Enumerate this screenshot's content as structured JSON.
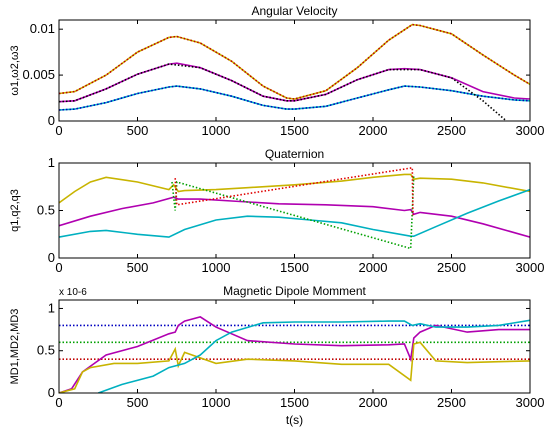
{
  "chart_data": [
    {
      "type": "line",
      "title": "Angular Velocity",
      "ylabel": "ω1,ω2,ω3",
      "xlim": [
        0,
        3000
      ],
      "ylim": [
        0,
        0.011
      ],
      "xticks": [
        0,
        500,
        1000,
        1500,
        2000,
        2500,
        3000
      ],
      "xtick_labels": [
        "0",
        "500",
        "1000",
        "1500",
        "2000",
        "2500",
        "3000"
      ],
      "yticks": [
        0,
        0.005,
        0.01
      ],
      "ytick_labels": [
        "0",
        "0.005",
        "0.01"
      ],
      "series": [
        {
          "color": "#c8b400",
          "style": "solid",
          "x": [
            0,
            100,
            300,
            500,
            700,
            750,
            900,
            1100,
            1300,
            1450,
            1500,
            1700,
            1900,
            2100,
            2250,
            2300,
            2500,
            2700,
            2900,
            3000
          ],
          "y": [
            0.003,
            0.0032,
            0.005,
            0.0075,
            0.0091,
            0.0092,
            0.0085,
            0.0065,
            0.0038,
            0.0025,
            0.0024,
            0.0033,
            0.0058,
            0.0088,
            0.0105,
            0.0104,
            0.0095,
            0.0072,
            0.005,
            0.004
          ]
        },
        {
          "color": "#b000b0",
          "style": "solid",
          "x": [
            0,
            100,
            300,
            500,
            700,
            750,
            900,
            1100,
            1300,
            1450,
            1500,
            1700,
            1900,
            2100,
            2200,
            2300,
            2500,
            2700,
            2900,
            3000
          ],
          "y": [
            0.0021,
            0.0022,
            0.0035,
            0.0051,
            0.0062,
            0.0063,
            0.0058,
            0.0044,
            0.0027,
            0.0022,
            0.0022,
            0.0029,
            0.0045,
            0.0056,
            0.0057,
            0.0056,
            0.0047,
            0.0032,
            0.0025,
            0.0024
          ]
        },
        {
          "color": "#00b0c0",
          "style": "solid",
          "x": [
            0,
            100,
            300,
            500,
            700,
            750,
            900,
            1100,
            1300,
            1450,
            1500,
            1700,
            1900,
            2100,
            2200,
            2300,
            2500,
            2700,
            2900,
            3000
          ],
          "y": [
            0.0012,
            0.0013,
            0.002,
            0.003,
            0.0037,
            0.0038,
            0.0035,
            0.0027,
            0.0017,
            0.0013,
            0.0013,
            0.0016,
            0.0025,
            0.0034,
            0.0038,
            0.0037,
            0.0033,
            0.0027,
            0.0023,
            0.0022
          ]
        },
        {
          "color": "#c00000",
          "style": "dotted",
          "x": [
            0,
            100,
            300,
            500,
            700,
            750,
            900,
            1100,
            1300,
            1450,
            1500,
            1700,
            1900,
            2100,
            2250,
            2300,
            2500,
            2700,
            2900,
            3000
          ],
          "y": [
            0.003,
            0.0032,
            0.005,
            0.0075,
            0.0091,
            0.0092,
            0.0085,
            0.0065,
            0.0038,
            0.0025,
            0.0024,
            0.0033,
            0.0058,
            0.0088,
            0.0105,
            0.0104,
            0.0095,
            0.0072,
            0.005,
            0.004
          ]
        },
        {
          "color": "#0000c0",
          "style": "dotted",
          "x": [
            0,
            100,
            300,
            500,
            700,
            750,
            900,
            1100,
            1300,
            1450,
            1500,
            1700,
            1900,
            2100,
            2200,
            2300,
            2500,
            2700,
            2900,
            3000
          ],
          "y": [
            0.0012,
            0.0013,
            0.002,
            0.003,
            0.0037,
            0.0038,
            0.0035,
            0.0027,
            0.0017,
            0.0013,
            0.0013,
            0.0016,
            0.0025,
            0.0034,
            0.0038,
            0.0037,
            0.0033,
            0.0027,
            0.0023,
            0.0022
          ]
        },
        {
          "color": "#000000",
          "style": "dotted",
          "x": [
            0,
            100,
            300,
            500,
            700,
            900,
            1100,
            1300,
            1450,
            1500,
            1700,
            1900,
            2100,
            2300,
            2500,
            2700,
            2850
          ],
          "y": [
            0.0021,
            0.0022,
            0.0035,
            0.0051,
            0.0062,
            0.0058,
            0.0044,
            0.0027,
            0.0022,
            0.0022,
            0.0029,
            0.0045,
            0.0056,
            0.0056,
            0.0047,
            0.0022,
            0.0
          ]
        }
      ]
    },
    {
      "type": "line",
      "title": "Quaternion",
      "ylabel": "q1,q2,q3",
      "xlim": [
        0,
        3000
      ],
      "ylim": [
        0,
        1
      ],
      "xticks": [
        0,
        500,
        1000,
        1500,
        2000,
        2500,
        3000
      ],
      "xtick_labels": [
        "0",
        "500",
        "1000",
        "1500",
        "2000",
        "2500",
        "3000"
      ],
      "yticks": [
        0,
        0.5,
        1
      ],
      "ytick_labels": [
        "0",
        "0.5",
        "1"
      ],
      "series": [
        {
          "color": "#c8b400",
          "style": "solid",
          "x": [
            0,
            100,
            200,
            300,
            500,
            700,
            730,
            760,
            800,
            1000,
            1200,
            1500,
            1800,
            2000,
            2200,
            2240,
            2260,
            2300,
            2500,
            2700,
            3000
          ],
          "y": [
            0.58,
            0.7,
            0.8,
            0.85,
            0.8,
            0.72,
            0.77,
            0.7,
            0.71,
            0.72,
            0.74,
            0.77,
            0.81,
            0.85,
            0.88,
            0.88,
            0.83,
            0.84,
            0.83,
            0.79,
            0.7
          ]
        },
        {
          "color": "#b000b0",
          "style": "solid",
          "x": [
            0,
            200,
            400,
            600,
            730,
            760,
            900,
            1100,
            1400,
            1700,
            2000,
            2200,
            2240,
            2260,
            2300,
            2500,
            2700,
            3000
          ],
          "y": [
            0.34,
            0.44,
            0.52,
            0.58,
            0.64,
            0.62,
            0.62,
            0.6,
            0.57,
            0.56,
            0.54,
            0.5,
            0.51,
            0.46,
            0.48,
            0.44,
            0.36,
            0.22
          ]
        },
        {
          "color": "#00b0c0",
          "style": "solid",
          "x": [
            0,
            200,
            300,
            500,
            700,
            800,
            1000,
            1200,
            1400,
            1600,
            1800,
            2000,
            2240,
            2260,
            2400,
            2600,
            2800,
            3000
          ],
          "y": [
            0.22,
            0.28,
            0.29,
            0.25,
            0.22,
            0.3,
            0.4,
            0.44,
            0.43,
            0.4,
            0.37,
            0.3,
            0.23,
            0.23,
            0.33,
            0.47,
            0.6,
            0.72
          ]
        },
        {
          "color": "#00a000",
          "style": "dotted",
          "x": [
            720,
            740,
            750,
            2240,
            2250,
            2260
          ],
          "y": [
            0.8,
            0.5,
            0.8,
            0.1,
            0.5,
            0.88
          ]
        },
        {
          "color": "#e00000",
          "style": "dotted",
          "x": [
            740,
            745,
            750,
            2250,
            2252,
            2255
          ],
          "y": [
            0.84,
            0.7,
            0.56,
            0.95,
            0.7,
            0.45
          ]
        }
      ]
    },
    {
      "type": "line",
      "title": "Magnetic Dipole Momment",
      "ylabel": "MD1,MD2,MD3",
      "xlabel": "t(s)",
      "exponent": "x 10-6",
      "xlim": [
        0,
        3000
      ],
      "ylim": [
        0,
        1.1
      ],
      "xticks": [
        0,
        500,
        1000,
        1500,
        2000,
        2500,
        3000
      ],
      "xtick_labels": [
        "0",
        "500",
        "1000",
        "1500",
        "2000",
        "2500",
        "3000"
      ],
      "yticks": [
        0,
        0.5,
        1
      ],
      "ytick_labels": [
        "0",
        "0.5",
        "1"
      ],
      "series": [
        {
          "color": "#0000c0",
          "style": "dotted",
          "x": [
            0,
            3000
          ],
          "y": [
            0.8,
            0.8
          ]
        },
        {
          "color": "#00a000",
          "style": "dotted",
          "x": [
            0,
            3000
          ],
          "y": [
            0.6,
            0.6
          ]
        },
        {
          "color": "#c00000",
          "style": "dotted",
          "x": [
            0,
            3000
          ],
          "y": [
            0.4,
            0.4
          ]
        },
        {
          "color": "#b000b0",
          "style": "solid",
          "x": [
            0,
            80,
            150,
            300,
            500,
            700,
            740,
            760,
            800,
            900,
            1000,
            1200,
            1500,
            1800,
            2100,
            2200,
            2240,
            2260,
            2300,
            2400,
            2600,
            2800,
            3000
          ],
          "y": [
            0.0,
            0.05,
            0.25,
            0.45,
            0.55,
            0.7,
            0.72,
            0.8,
            0.85,
            0.9,
            0.78,
            0.62,
            0.58,
            0.56,
            0.57,
            0.58,
            0.4,
            0.65,
            0.72,
            0.8,
            0.72,
            0.75,
            0.75
          ]
        },
        {
          "color": "#c8b400",
          "style": "solid",
          "x": [
            0,
            100,
            150,
            200,
            350,
            500,
            700,
            740,
            760,
            800,
            1000,
            1200,
            1500,
            1800,
            2100,
            2240,
            2260,
            2300,
            2400,
            2600,
            2800,
            3000
          ],
          "y": [
            0.0,
            0.05,
            0.25,
            0.3,
            0.35,
            0.35,
            0.38,
            0.52,
            0.32,
            0.48,
            0.35,
            0.4,
            0.38,
            0.34,
            0.34,
            0.15,
            0.58,
            0.6,
            0.38,
            0.36,
            0.37,
            0.38
          ]
        },
        {
          "color": "#00b0c0",
          "style": "solid",
          "x": [
            250,
            400,
            600,
            700,
            800,
            900,
            1000,
            1100,
            1300,
            1500,
            1800,
            2100,
            2200,
            2250,
            2300,
            2400,
            2600,
            2800,
            3000
          ],
          "y": [
            0.0,
            0.1,
            0.2,
            0.3,
            0.35,
            0.45,
            0.62,
            0.72,
            0.83,
            0.84,
            0.84,
            0.85,
            0.85,
            0.8,
            0.82,
            0.78,
            0.78,
            0.8,
            0.86
          ]
        }
      ]
    }
  ]
}
